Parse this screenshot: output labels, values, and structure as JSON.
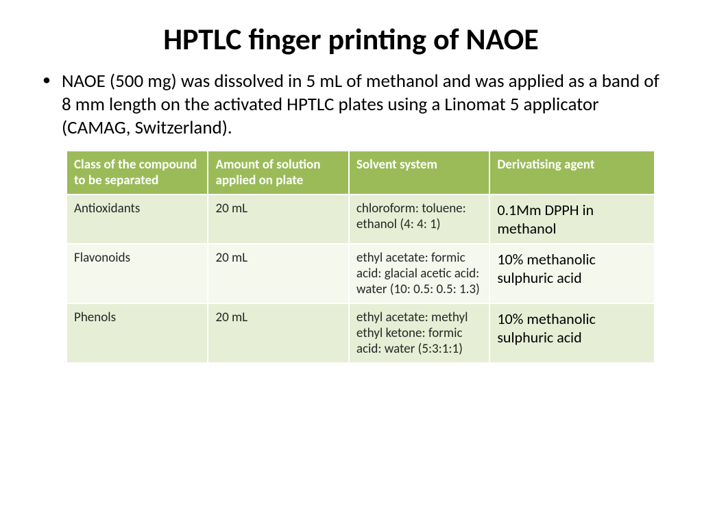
{
  "title": "HPTLC finger printing of NAOE",
  "bullet": "NAOE (500 mg) was dissolved in 5 mL of methanol and was applied as a band of 8 mm length on the activated HPTLC plates using a Linomat 5 applicator (CAMAG, Switzerland).",
  "table": {
    "header_bg": "#9bbb59",
    "row_odd_bg": "#e6eed5",
    "row_even_bg": "#f4f8ed",
    "columns": [
      "Class of the compound to be separated",
      "Amount of solution applied on plate",
      "Solvent system",
      "Derivatising agent"
    ],
    "col_widths": [
      "24%",
      "24%",
      "24%",
      "28%"
    ],
    "rows": [
      {
        "class": "Antioxidants",
        "amount": "20 mL",
        "solvent": "chloroform: toluene: ethanol (4: 4: 1)",
        "agent": "0.1Mm DPPH in methanol"
      },
      {
        "class": "Flavonoids",
        "amount": "20 mL",
        "solvent": "ethyl acetate: formic acid: glacial acetic acid: water (10: 0.5: 0.5: 1.3)",
        "agent": "10% methanolic sulphuric acid"
      },
      {
        "class": "Phenols",
        "amount": "20 mL",
        "solvent": "ethyl acetate: methyl ethyl ketone: formic acid: water (5:3:1:1)",
        "agent": "10% methanolic sulphuric acid"
      }
    ]
  }
}
